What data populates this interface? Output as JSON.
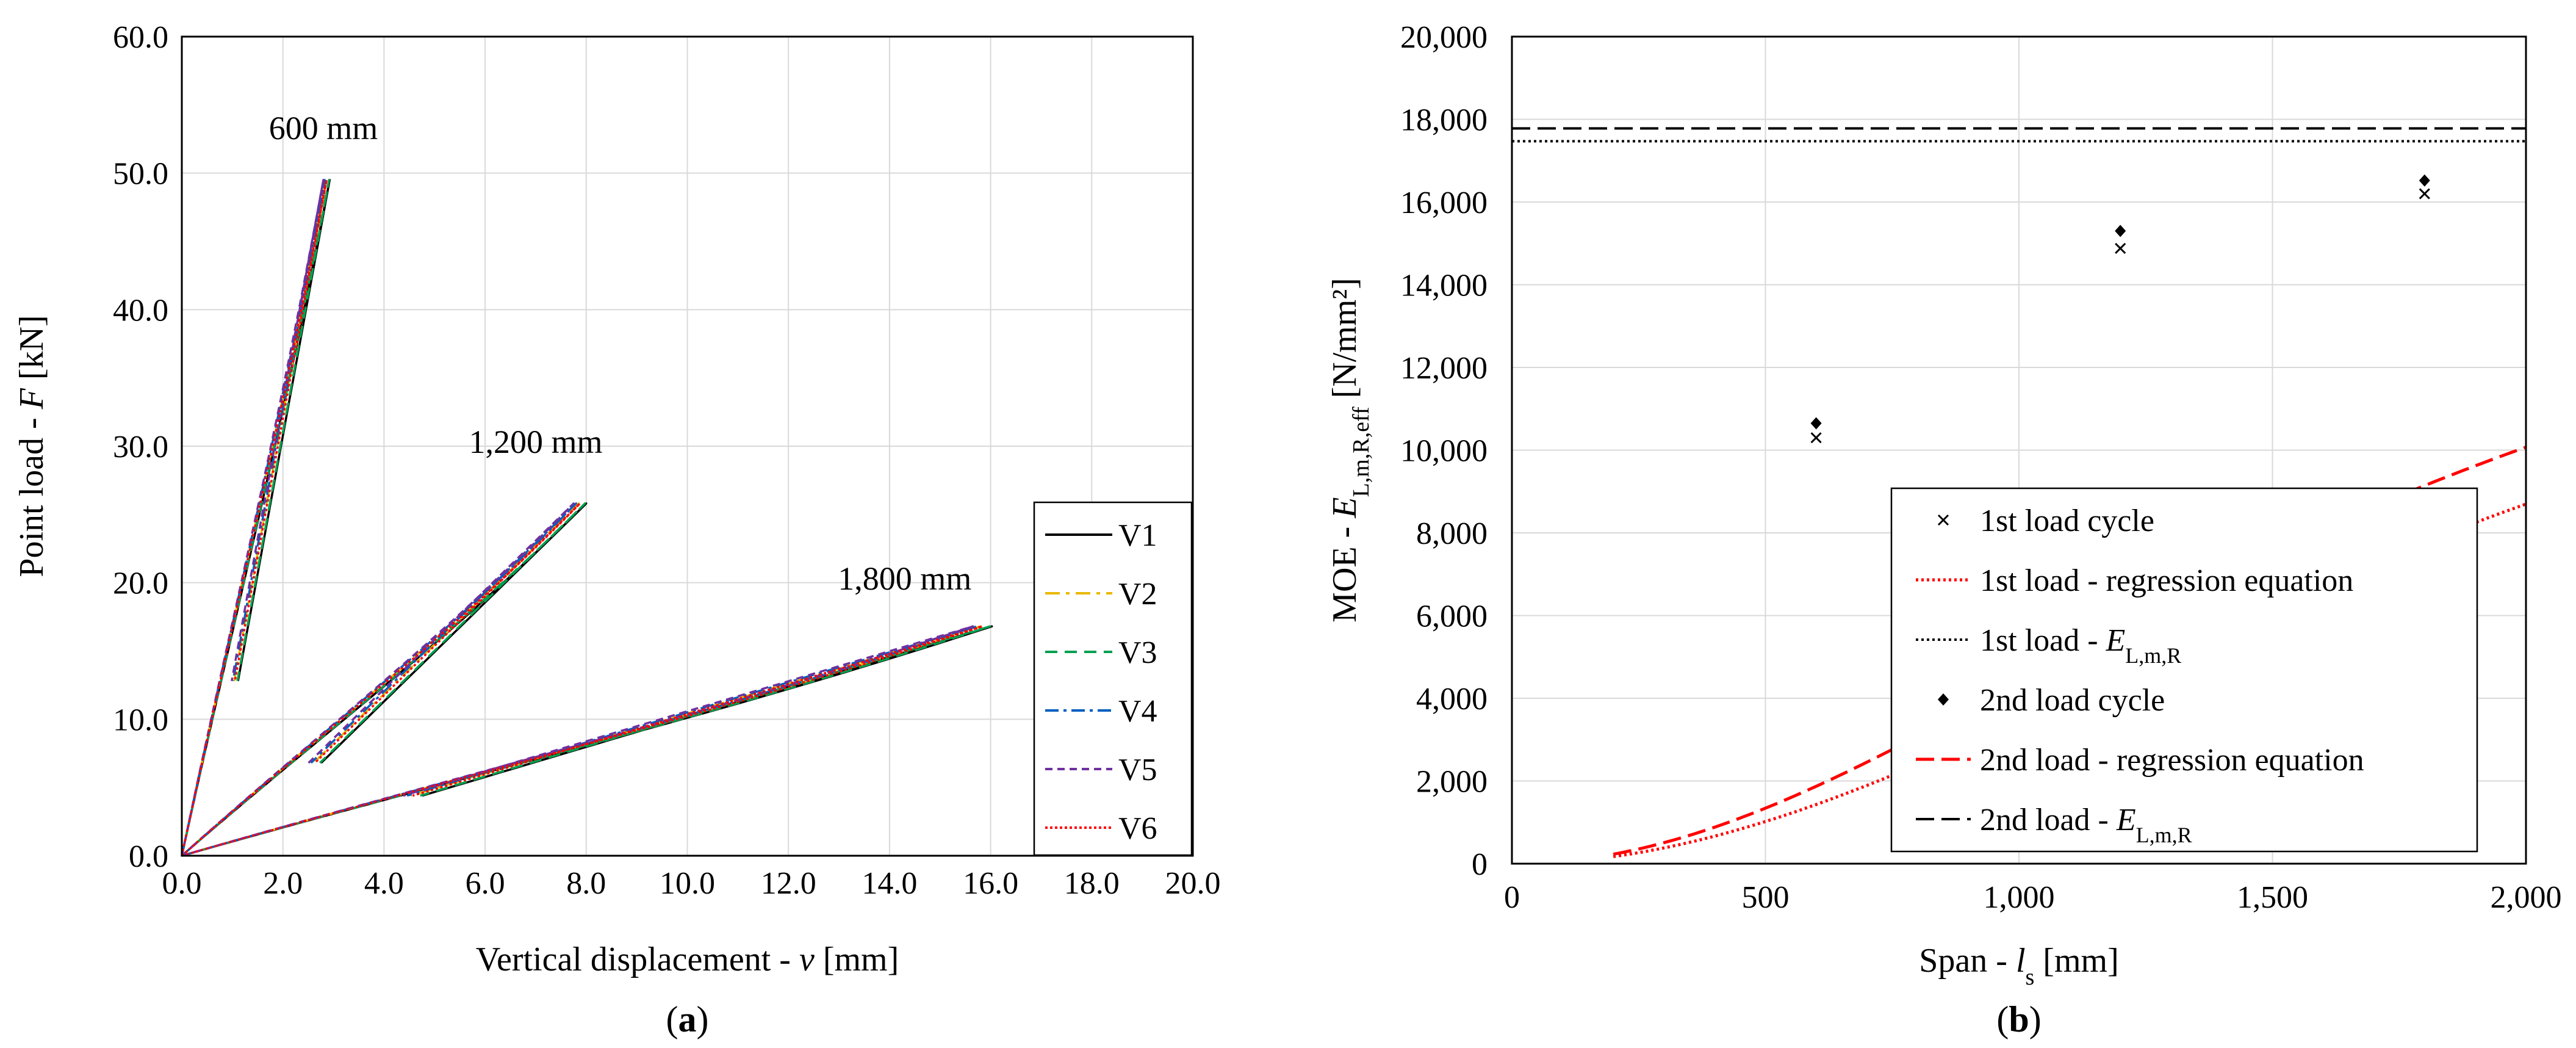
{
  "chart_data": [
    {
      "panel": "a",
      "type": "line",
      "panel_label_parts": [
        "(",
        "a",
        ")"
      ],
      "xlabel_parts": [
        "Vertical displacement - ",
        "v",
        " [mm]"
      ],
      "ylabel_parts": [
        "Point load - ",
        "F",
        " [kN]"
      ],
      "xlim": [
        0,
        20
      ],
      "ylim": [
        0,
        60
      ],
      "xticks": [
        "0.0",
        "2.0",
        "4.0",
        "6.0",
        "8.0",
        "10.0",
        "12.0",
        "14.0",
        "16.0",
        "18.0",
        "20.0"
      ],
      "yticks": [
        "0.0",
        "10.0",
        "20.0",
        "30.0",
        "40.0",
        "50.0",
        "60.0"
      ],
      "grid": true,
      "legend_position": "bottom-right",
      "annotations": [
        {
          "text": "600 mm",
          "x": 2.8,
          "y": 52.5
        },
        {
          "text": "1,200 mm",
          "x": 7.0,
          "y": 29.5
        },
        {
          "text": "1,800 mm",
          "x": 14.3,
          "y": 19.5
        }
      ],
      "groups": [
        {
          "span": "600 mm",
          "max_load": 49.5,
          "max_disp": 2.85,
          "unload_start_disp": 1.0,
          "unload_start_load": 12.8
        },
        {
          "span": "1,200 mm",
          "max_load": 25.8,
          "max_disp": 7.85,
          "unload_start_disp": 2.5,
          "unload_start_load": 6.8
        },
        {
          "span": "1,800 mm",
          "max_load": 16.8,
          "max_disp": 15.8,
          "unload_start_disp": 4.3,
          "unload_start_load": 4.4
        }
      ],
      "series": [
        {
          "name": "V1",
          "color": "#000000",
          "dash": "",
          "offset": 0.3
        },
        {
          "name": "V2",
          "color": "#e8b800",
          "dash": "24,10,6,10",
          "offset": 0.0
        },
        {
          "name": "V3",
          "color": "#00a050",
          "dash": "20,12",
          "offset": 0.25
        },
        {
          "name": "V4",
          "color": "#0060c0",
          "dash": "22,8,5,8",
          "offset": -0.1
        },
        {
          "name": "V5",
          "color": "#7030a0",
          "dash": "12,8",
          "offset": -0.2
        },
        {
          "name": "V6",
          "color": "#ff0000",
          "dash": "4,4",
          "offset": 0.05
        }
      ]
    },
    {
      "panel": "b",
      "type": "scatter",
      "panel_label_parts": [
        "(",
        "b",
        ")"
      ],
      "xlabel_parts": [
        "Span - ",
        "l",
        "s",
        " [mm]"
      ],
      "ylabel_parts": [
        "MOE - ",
        "E",
        "L,m,R,eff",
        " [N/mm²]"
      ],
      "xlim": [
        0,
        2000
      ],
      "ylim": [
        0,
        20000
      ],
      "xticks": [
        "0",
        "500",
        "1,000",
        "1,500",
        "2,000"
      ],
      "yticks": [
        "0",
        "2,000",
        "4,000",
        "6,000",
        "8,000",
        "10,000",
        "12,000",
        "14,000",
        "16,000",
        "18,000",
        "20,000"
      ],
      "grid": true,
      "legend_position": "bottom-right",
      "series": [
        {
          "name": "1st load cycle",
          "kind": "points",
          "marker": "x",
          "color": "#000000",
          "x": [
            600,
            1200,
            1800
          ],
          "y": [
            10300,
            14880,
            16200
          ]
        },
        {
          "name": "1st load - regression equation",
          "kind": "curve",
          "color": "#ff0000",
          "dash": "4,5",
          "x_range": [
            200,
            2000
          ],
          "E_inf": 17470,
          "k": 3100
        },
        {
          "name": "1st load - ",
          "name_italic": "E",
          "name_sub": "L,m,R",
          "kind": "hline",
          "color": "#000000",
          "dash": "4,5",
          "y": 17470
        },
        {
          "name": "2nd load cycle",
          "kind": "points",
          "marker": "diamond",
          "color": "#000000",
          "x": [
            600,
            1200,
            1800
          ],
          "y": [
            10650,
            15300,
            16520
          ]
        },
        {
          "name": "2nd load - regression equation",
          "kind": "curve",
          "color": "#ff0000",
          "dash": "30,12",
          "x_range": [
            200,
            2000
          ],
          "E_inf": 17780,
          "k": 2700
        },
        {
          "name": "2nd load - ",
          "name_italic": "E",
          "name_sub": "L,m,R",
          "kind": "hline",
          "color": "#000000",
          "dash": "30,12",
          "y": 17780
        }
      ]
    }
  ]
}
